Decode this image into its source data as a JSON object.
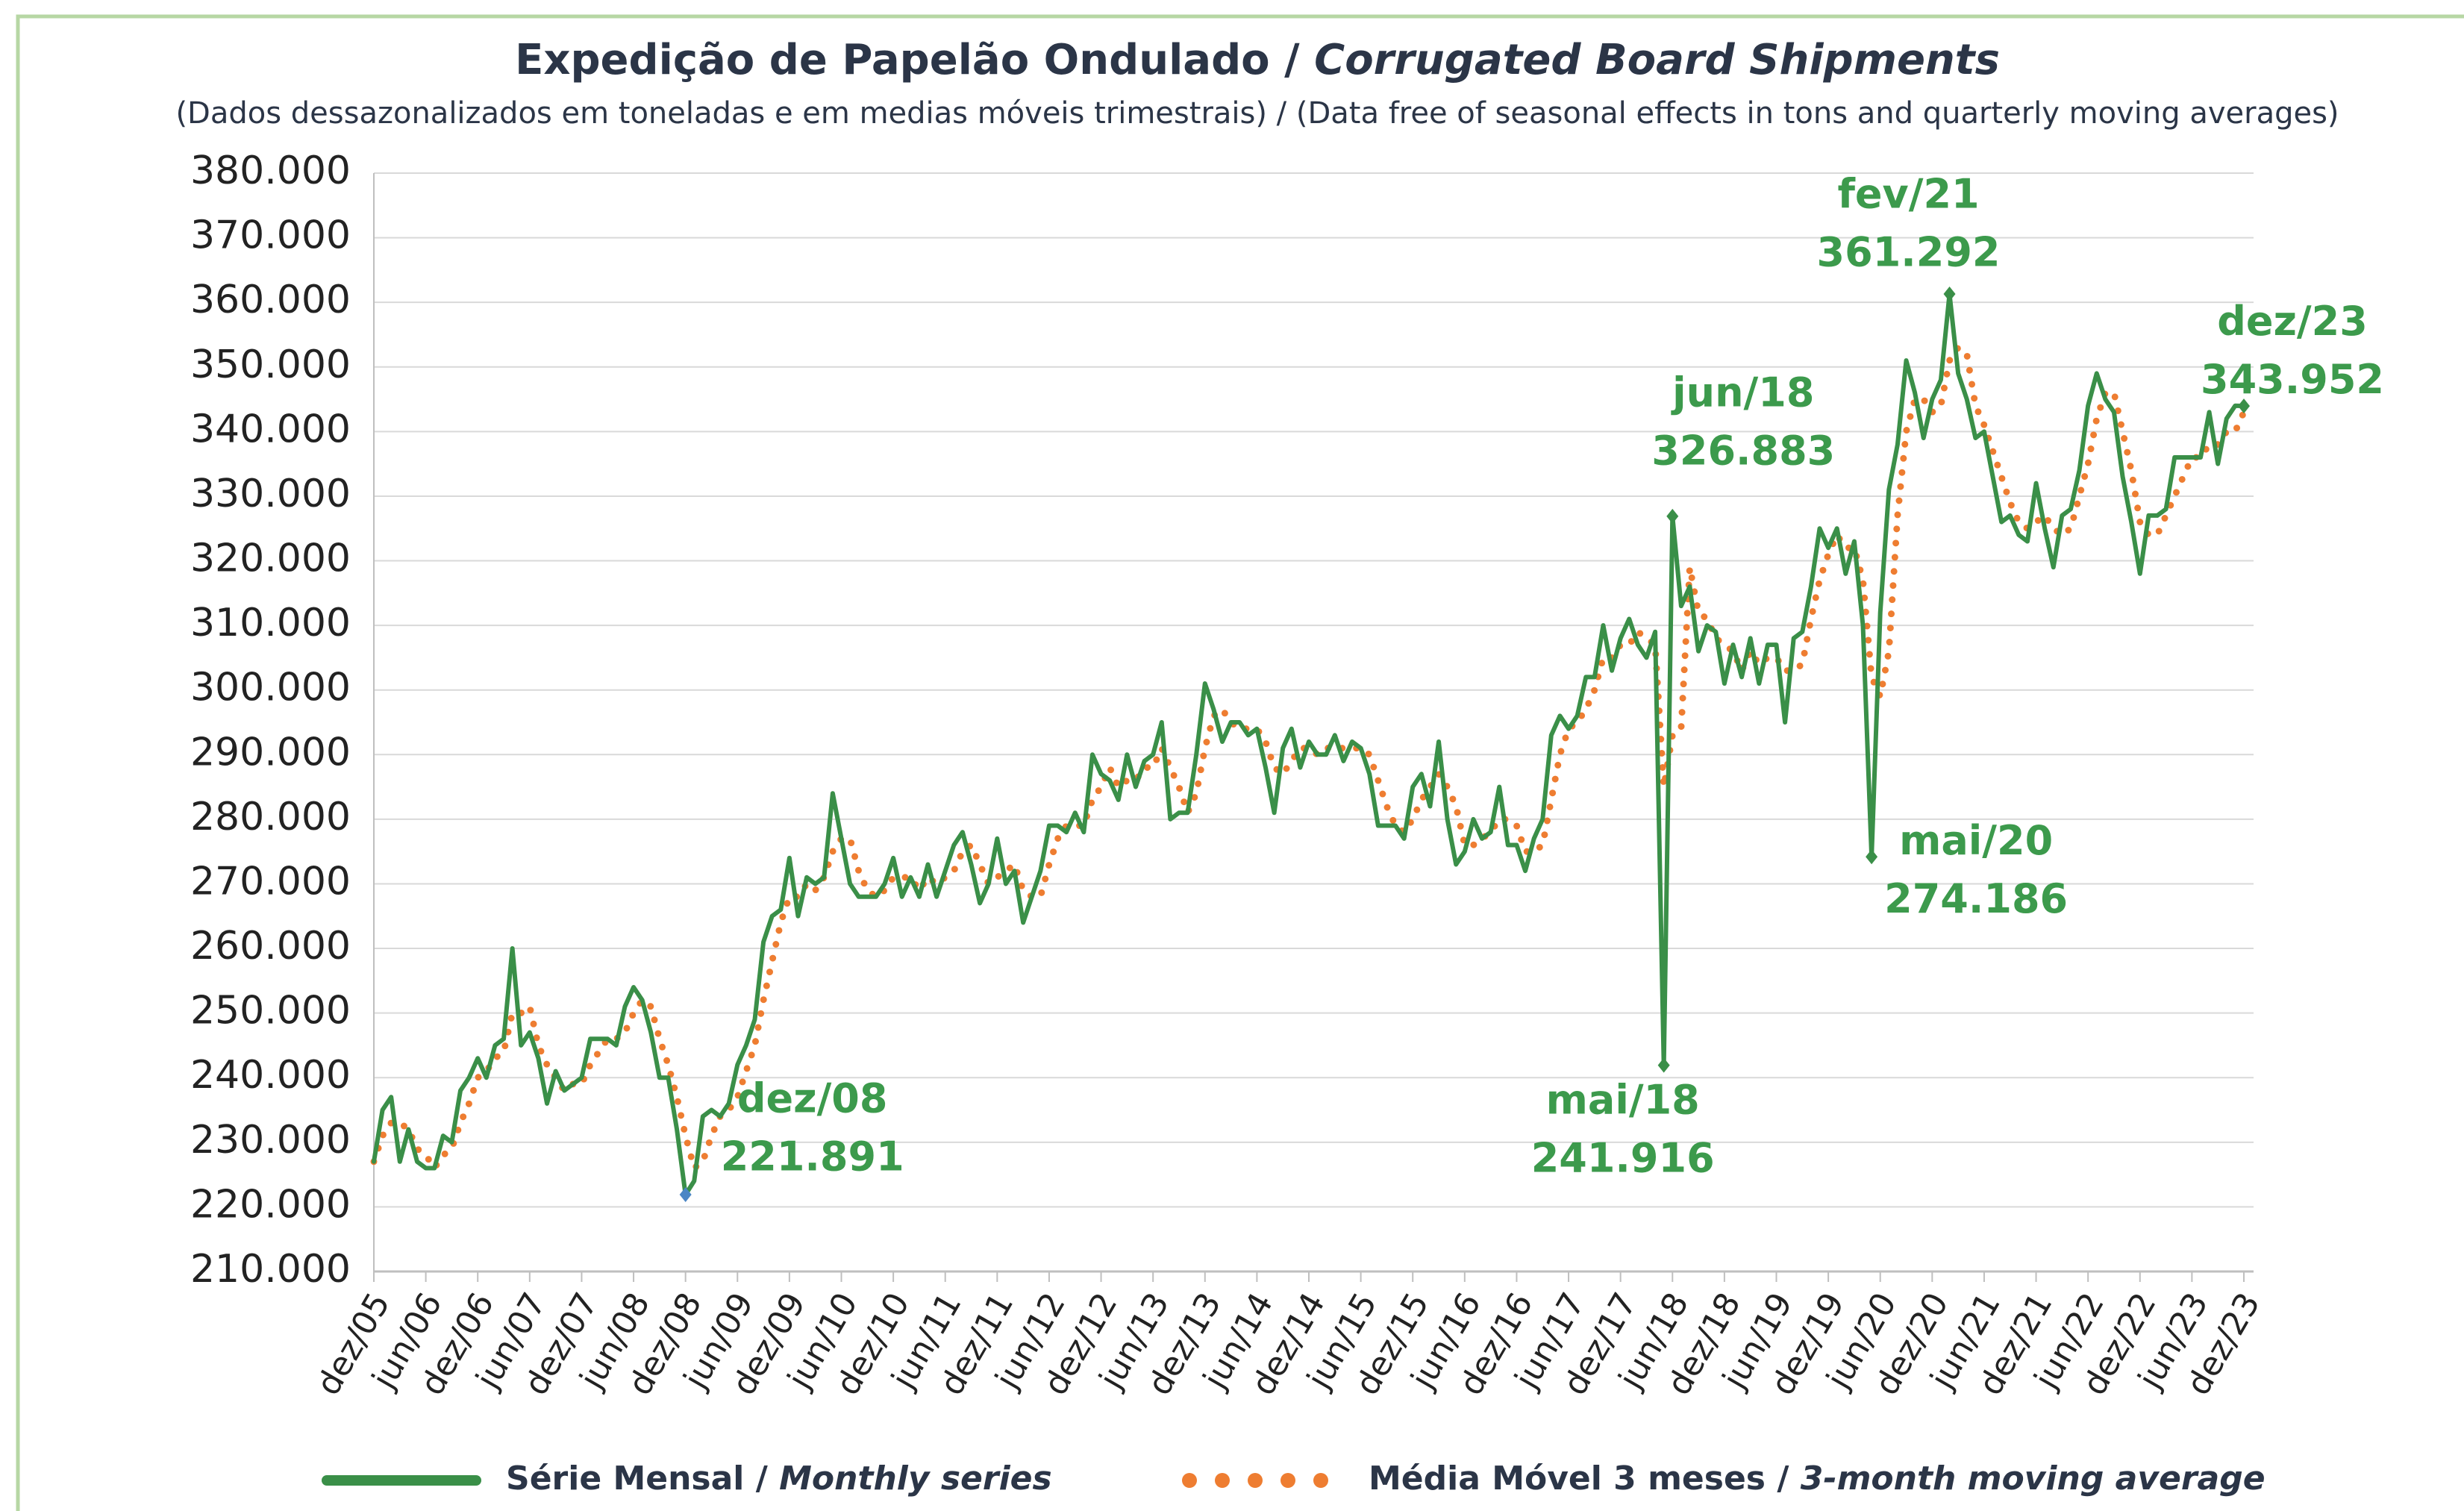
{
  "chart_data": {
    "type": "line",
    "title": "Expedição de Papelão Ondulado / Corrugated Board Shipments",
    "subtitle": "(Dados dessazonalizados em toneladas e em medias móveis trimestrais) / (Data free of seasonal effects in tons and quarterly moving averages)",
    "categories": [
      "dez/05",
      null,
      null,
      null,
      null,
      null,
      "jun/06",
      null,
      null,
      null,
      null,
      null,
      "dez/06",
      null,
      null,
      null,
      null,
      null,
      "jun/07",
      null,
      null,
      null,
      null,
      null,
      "dez/07",
      null,
      null,
      null,
      null,
      null,
      "jun/08",
      null,
      null,
      null,
      null,
      null,
      "dez/08",
      null,
      null,
      null,
      null,
      null,
      "jun/09",
      null,
      null,
      null,
      null,
      null,
      "dez/09",
      null,
      null,
      null,
      null,
      null,
      "jun/10",
      null,
      null,
      null,
      null,
      null,
      "dez/10",
      null,
      null,
      null,
      null,
      null,
      "jun/11",
      null,
      null,
      null,
      null,
      null,
      "dez/11",
      null,
      null,
      null,
      null,
      null,
      "jun/12",
      null,
      null,
      null,
      null,
      null,
      "dez/12",
      null,
      null,
      null,
      null,
      null,
      "jun/13",
      null,
      null,
      null,
      null,
      null,
      "dez/13",
      null,
      null,
      null,
      null,
      null,
      "jun/14",
      null,
      null,
      null,
      null,
      null,
      "dez/14",
      null,
      null,
      null,
      null,
      null,
      "jun/15",
      null,
      null,
      null,
      null,
      null,
      "dez/15",
      null,
      null,
      null,
      null,
      null,
      "jun/16",
      null,
      null,
      null,
      null,
      null,
      "dez/16",
      null,
      null,
      null,
      null,
      null,
      "jun/17",
      null,
      null,
      null,
      null,
      null,
      "dez/17",
      null,
      null,
      null,
      null,
      null,
      "jun/18",
      null,
      null,
      null,
      null,
      null,
      "dez/18",
      null,
      null,
      null,
      null,
      null,
      "jun/19",
      null,
      null,
      null,
      null,
      null,
      "dez/19",
      null,
      null,
      null,
      null,
      null,
      "jun/20",
      null,
      null,
      null,
      null,
      null,
      "dez/20",
      null,
      null,
      null,
      null,
      null,
      "jun/21",
      null,
      null,
      null,
      null,
      null,
      "dez/21",
      null,
      null,
      null,
      null,
      null,
      "jun/22",
      null,
      null,
      null,
      null,
      null,
      "dez/22",
      null,
      null,
      null,
      null,
      null,
      "jun/23",
      null,
      null,
      null,
      null,
      null,
      "dez/23"
    ],
    "series": [
      {
        "name": "Série Mensal / Monthly series",
        "color": "#3a8f48",
        "style": "solid",
        "values": [
          227000,
          235000,
          237000,
          227000,
          232000,
          227000,
          226000,
          226000,
          231000,
          230000,
          238000,
          240000,
          243000,
          240000,
          245000,
          246000,
          260000,
          245000,
          247000,
          243000,
          236000,
          241000,
          238000,
          239000,
          240000,
          246000,
          246000,
          246000,
          245000,
          251000,
          254000,
          252000,
          247000,
          240000,
          240000,
          232000,
          221891,
          224000,
          234000,
          235000,
          234000,
          236000,
          242000,
          245000,
          249000,
          261000,
          265000,
          266000,
          274000,
          265000,
          271000,
          270000,
          271000,
          284000,
          277000,
          270000,
          268000,
          268000,
          268000,
          270000,
          274000,
          268000,
          271000,
          268000,
          273000,
          268000,
          272000,
          276000,
          278000,
          273000,
          267000,
          270000,
          277000,
          270000,
          272000,
          264000,
          268000,
          272000,
          279000,
          279000,
          278000,
          281000,
          278000,
          290000,
          287000,
          286000,
          283000,
          290000,
          285000,
          289000,
          290000,
          295000,
          280000,
          281000,
          281000,
          290000,
          301000,
          297000,
          292000,
          295000,
          295000,
          293000,
          294000,
          288000,
          281000,
          291000,
          294000,
          288000,
          292000,
          290000,
          290000,
          293000,
          289000,
          292000,
          291000,
          287000,
          279000,
          279000,
          279000,
          277000,
          285000,
          287000,
          282000,
          292000,
          280000,
          273000,
          275000,
          280000,
          277000,
          278000,
          285000,
          276000,
          276000,
          272000,
          277000,
          280000,
          293000,
          296000,
          294000,
          296000,
          302000,
          302000,
          310000,
          303000,
          308000,
          311000,
          307000,
          305000,
          309000,
          241916,
          326883,
          313000,
          316000,
          306000,
          310000,
          309000,
          301000,
          307000,
          302000,
          308000,
          301000,
          307000,
          307000,
          295000,
          308000,
          309000,
          316000,
          325000,
          322000,
          325000,
          318000,
          323000,
          310000,
          274186,
          312000,
          331000,
          338000,
          351000,
          346000,
          339000,
          345000,
          348000,
          361292,
          349000,
          345000,
          339000,
          340000,
          333000,
          326000,
          327000,
          324000,
          323000,
          332000,
          325000,
          319000,
          327000,
          328000,
          334000,
          344000,
          349000,
          345000,
          343000,
          333000,
          326000,
          318000,
          327000,
          327000,
          328000,
          336000,
          336000,
          336000,
          336000,
          343000,
          335000,
          342000,
          344000,
          343952
        ]
      },
      {
        "name": "Média Móvel 3 meses / 3-month moving average",
        "color": "#ee7d31",
        "style": "dotted",
        "values": [
          227000,
          231000,
          233000,
          233000,
          232000,
          229000,
          228000,
          226000,
          228000,
          229000,
          233000,
          236000,
          240000,
          241000,
          243000,
          244000,
          250000,
          250000,
          251000,
          245000,
          242000,
          240000,
          238000,
          239000,
          239000,
          242000,
          244000,
          246000,
          246000,
          247000,
          250000,
          252000,
          251000,
          246000,
          242000,
          237000,
          231000,
          226000,
          227000,
          231000,
          234000,
          235000,
          237000,
          241000,
          245000,
          252000,
          258000,
          264000,
          268000,
          268000,
          270000,
          269000,
          271000,
          275000,
          277000,
          277000,
          272000,
          269000,
          268000,
          269000,
          271000,
          271000,
          271000,
          269000,
          271000,
          270000,
          271000,
          272000,
          275000,
          276000,
          273000,
          270000,
          271000,
          272000,
          273000,
          269000,
          268000,
          268000,
          273000,
          277000,
          279000,
          279000,
          279000,
          283000,
          285000,
          288000,
          285000,
          286000,
          286000,
          288000,
          288000,
          291000,
          288000,
          285000,
          281000,
          284000,
          291000,
          296000,
          297000,
          295000,
          294000,
          294000,
          294000,
          292000,
          288000,
          287000,
          289000,
          291000,
          291000,
          290000,
          291000,
          291000,
          291000,
          291000,
          291000,
          290000,
          286000,
          282000,
          279000,
          278000,
          280000,
          283000,
          285000,
          287000,
          285000,
          282000,
          276000,
          276000,
          277000,
          278000,
          280000,
          280000,
          279000,
          275000,
          275000,
          276000,
          283000,
          290000,
          294000,
          295000,
          297000,
          300000,
          305000,
          305000,
          307000,
          307000,
          309000,
          308000,
          307000,
          285000,
          293000,
          294000,
          319000,
          312000,
          311000,
          308000,
          307000,
          306000,
          303000,
          306000,
          304000,
          305000,
          305000,
          303000,
          303000,
          304000,
          311000,
          317000,
          321000,
          324000,
          322000,
          322000,
          317000,
          302000,
          299000,
          306000,
          327000,
          340000,
          345000,
          345000,
          343000,
          344000,
          351000,
          353000,
          352000,
          344000,
          341000,
          337000,
          333000,
          329000,
          326000,
          325000,
          326000,
          327000,
          325000,
          324000,
          325000,
          330000,
          335000,
          342000,
          346000,
          346000,
          340000,
          334000,
          326000,
          324000,
          324000,
          327000,
          330000,
          333000,
          336000,
          336000,
          338000,
          338000,
          340000,
          340000,
          343000
        ]
      }
    ],
    "ylim": [
      210000,
      380000
    ],
    "yticks": [
      {
        "value": 210000,
        "label": "210.000"
      },
      {
        "value": 220000,
        "label": "220.000"
      },
      {
        "value": 230000,
        "label": "230.000"
      },
      {
        "value": 240000,
        "label": "240.000"
      },
      {
        "value": 250000,
        "label": "250.000"
      },
      {
        "value": 260000,
        "label": "260.000"
      },
      {
        "value": 270000,
        "label": "270.000"
      },
      {
        "value": 280000,
        "label": "280.000"
      },
      {
        "value": 290000,
        "label": "290.000"
      },
      {
        "value": 300000,
        "label": "300.000"
      },
      {
        "value": 310000,
        "label": "310.000"
      },
      {
        "value": 320000,
        "label": "320.000"
      },
      {
        "value": 330000,
        "label": "330.000"
      },
      {
        "value": 340000,
        "label": "340.000"
      },
      {
        "value": 350000,
        "label": "350.000"
      },
      {
        "value": 360000,
        "label": "360.000"
      },
      {
        "value": 370000,
        "label": "370.000"
      },
      {
        "value": 380000,
        "label": "380.000"
      }
    ],
    "grid": true,
    "annotations": [
      {
        "label": "dez/08",
        "value": 221891,
        "value_label": "221.891"
      },
      {
        "label": "jun/18",
        "value": 326883,
        "value_label": "326.883"
      },
      {
        "label": "mai/18",
        "value": 241916,
        "value_label": "241.916"
      },
      {
        "label": "mai/20",
        "value": 274186,
        "value_label": "274.186"
      },
      {
        "label": "fev/21",
        "value": 361292,
        "value_label": "361.292"
      },
      {
        "label": "dez/23",
        "value": 343952,
        "value_label": "343.952"
      }
    ],
    "annotation_color": "#3c9a4c"
  }
}
